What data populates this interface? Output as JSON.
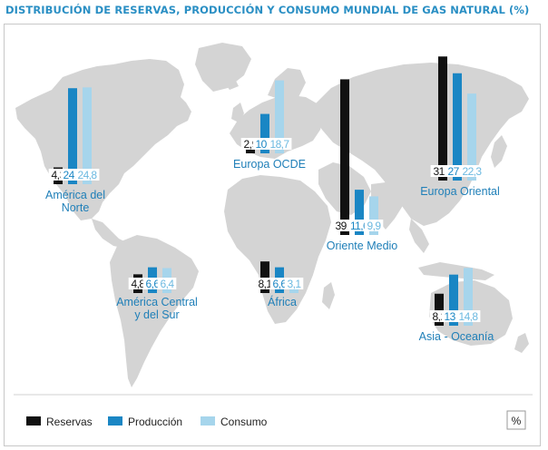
{
  "title": "DISTRIBUCIÓN DE RESERVAS, PRODUCCIÓN Y CONSUMO MUNDIAL DE GAS NATURAL (%)",
  "unit_label": "%",
  "colors": {
    "reservas": "#111111",
    "produccion": "#1a86c4",
    "consumo": "#a6d5ec",
    "map": "#d4d4d4",
    "label": "#1f7fb8"
  },
  "chart_data": {
    "type": "bar",
    "series": [
      {
        "name": "Reservas",
        "key": "reservas"
      },
      {
        "name": "Producción",
        "key": "produccion"
      },
      {
        "name": "Consumo",
        "key": "consumo"
      }
    ],
    "regions": [
      {
        "id": "america-del-norte",
        "label": [
          "América del",
          "Norte"
        ],
        "values": {
          "reservas": "4,3",
          "produccion": "24,6",
          "consumo": "24,8"
        }
      },
      {
        "id": "europa-ocde",
        "label": [
          "Europa OCDE"
        ],
        "values": {
          "reservas": "2,9",
          "produccion": "10,1",
          "consumo": "18,7"
        }
      },
      {
        "id": "europa-oriental",
        "label": [
          "Europa Oriental"
        ],
        "values": {
          "reservas": "31,8",
          "produccion": "27,5",
          "consumo": "22,3"
        }
      },
      {
        "id": "oriente-medio",
        "label": [
          "Oriente Medio"
        ],
        "values": {
          "reservas": "39,9",
          "produccion": "11,6",
          "consumo": "9,9"
        }
      },
      {
        "id": "america-central-y-del-sur",
        "label": [
          "América Central",
          "y del Sur"
        ],
        "values": {
          "reservas": "4,8",
          "produccion": "6,6",
          "consumo": "6,4"
        }
      },
      {
        "id": "africa",
        "label": [
          "África"
        ],
        "values": {
          "reservas": "8,1",
          "produccion": "6,6",
          "consumo": "3,1"
        }
      },
      {
        "id": "asia-oceania",
        "label": [
          "Asia - Oceanía"
        ],
        "values": {
          "reservas": "8,2",
          "produccion": "13,1",
          "consumo": "14,8"
        }
      }
    ],
    "legend_position": "bottom-left"
  }
}
